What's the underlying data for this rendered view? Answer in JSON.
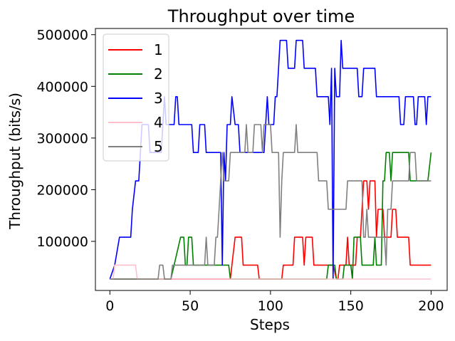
{
  "chart_data": {
    "type": "line",
    "title": "Throughput over time",
    "xlabel": "Steps",
    "ylabel": "Throughput (bits/s)",
    "xlim": [
      -9,
      210
    ],
    "ylim": [
      5000,
      512000
    ],
    "xticks": [
      0,
      50,
      100,
      150,
      200
    ],
    "yticks": [
      100000,
      200000,
      300000,
      400000,
      500000
    ],
    "grid": false,
    "legend_position": "top-left",
    "series": [
      {
        "name": "1",
        "color": "#ff0000",
        "points": [
          [
            0,
            27000
          ],
          [
            75,
            27000
          ],
          [
            76,
            54000
          ],
          [
            78,
            108000
          ],
          [
            82,
            108000
          ],
          [
            83,
            54000
          ],
          [
            92,
            54000
          ],
          [
            93,
            27000
          ],
          [
            107,
            27000
          ],
          [
            108,
            54000
          ],
          [
            114,
            54000
          ],
          [
            115,
            108000
          ],
          [
            120,
            108000
          ],
          [
            121,
            54000
          ],
          [
            122,
            108000
          ],
          [
            126,
            108000
          ],
          [
            127,
            54000
          ],
          [
            139,
            54000
          ],
          [
            141,
            27000
          ],
          [
            142,
            27000
          ],
          [
            143,
            54000
          ],
          [
            147,
            54000
          ],
          [
            148,
            108000
          ],
          [
            149,
            54000
          ],
          [
            153,
            54000
          ],
          [
            154,
            108000
          ],
          [
            156,
            108000
          ],
          [
            157,
            162000
          ],
          [
            158,
            217000
          ],
          [
            160,
            217000
          ],
          [
            161,
            162000
          ],
          [
            162,
            217000
          ],
          [
            165,
            217000
          ],
          [
            166,
            108000
          ],
          [
            167,
            162000
          ],
          [
            170,
            162000
          ],
          [
            171,
            108000
          ],
          [
            175,
            108000
          ],
          [
            176,
            162000
          ],
          [
            178,
            162000
          ],
          [
            179,
            108000
          ],
          [
            186,
            108000
          ],
          [
            187,
            54000
          ],
          [
            200,
            54000
          ]
        ]
      },
      {
        "name": "2",
        "color": "#008000",
        "points": [
          [
            0,
            27000
          ],
          [
            38,
            27000
          ],
          [
            40,
            54000
          ],
          [
            44,
            108000
          ],
          [
            46,
            108000
          ],
          [
            47,
            54000
          ],
          [
            48,
            54000
          ],
          [
            49,
            108000
          ],
          [
            51,
            108000
          ],
          [
            52,
            54000
          ],
          [
            74,
            54000
          ],
          [
            75,
            27000
          ],
          [
            80,
            27000
          ],
          [
            135,
            27000
          ],
          [
            136,
            54000
          ],
          [
            140,
            54000
          ],
          [
            141,
            27000
          ],
          [
            145,
            27000
          ],
          [
            146,
            54000
          ],
          [
            150,
            54000
          ],
          [
            151,
            27000
          ],
          [
            152,
            108000
          ],
          [
            156,
            108000
          ],
          [
            157,
            54000
          ],
          [
            164,
            54000
          ],
          [
            165,
            108000
          ],
          [
            166,
            54000
          ],
          [
            169,
            54000
          ],
          [
            170,
            217000
          ],
          [
            171,
            217000
          ],
          [
            172,
            272000
          ],
          [
            174,
            272000
          ],
          [
            175,
            217000
          ],
          [
            176,
            272000
          ],
          [
            186,
            272000
          ],
          [
            187,
            217000
          ],
          [
            198,
            217000
          ],
          [
            200,
            272000
          ]
        ]
      },
      {
        "name": "3",
        "color": "#0000ff",
        "points": [
          [
            0,
            27000
          ],
          [
            3,
            54000
          ],
          [
            6,
            108000
          ],
          [
            13,
            108000
          ],
          [
            14,
            162000
          ],
          [
            16,
            217000
          ],
          [
            18,
            217000
          ],
          [
            19,
            272000
          ],
          [
            20,
            326000
          ],
          [
            24,
            326000
          ],
          [
            25,
            272000
          ],
          [
            32,
            272000
          ],
          [
            33,
            326000
          ],
          [
            34,
            380000
          ],
          [
            35,
            326000
          ],
          [
            40,
            326000
          ],
          [
            41,
            380000
          ],
          [
            42,
            380000
          ],
          [
            43,
            326000
          ],
          [
            51,
            326000
          ],
          [
            52,
            272000
          ],
          [
            55,
            272000
          ],
          [
            56,
            326000
          ],
          [
            59,
            326000
          ],
          [
            60,
            272000
          ],
          [
            69,
            272000
          ],
          [
            70,
            54000
          ],
          [
            71,
            272000
          ],
          [
            72,
            217000
          ],
          [
            73,
            326000
          ],
          [
            75,
            326000
          ],
          [
            76,
            380000
          ],
          [
            78,
            326000
          ],
          [
            80,
            326000
          ],
          [
            81,
            272000
          ],
          [
            96,
            272000
          ],
          [
            97,
            326000
          ],
          [
            98,
            380000
          ],
          [
            99,
            326000
          ],
          [
            102,
            326000
          ],
          [
            103,
            380000
          ],
          [
            104,
            380000
          ],
          [
            105,
            435000
          ],
          [
            106,
            489000
          ],
          [
            110,
            489000
          ],
          [
            111,
            435000
          ],
          [
            115,
            435000
          ],
          [
            116,
            489000
          ],
          [
            120,
            489000
          ],
          [
            121,
            435000
          ],
          [
            128,
            435000
          ],
          [
            129,
            380000
          ],
          [
            136,
            380000
          ],
          [
            137,
            326000
          ],
          [
            138,
            435000
          ],
          [
            139,
            27000
          ],
          [
            140,
            435000
          ],
          [
            141,
            380000
          ],
          [
            143,
            380000
          ],
          [
            144,
            489000
          ],
          [
            145,
            435000
          ],
          [
            154,
            435000
          ],
          [
            155,
            380000
          ],
          [
            157,
            380000
          ],
          [
            158,
            435000
          ],
          [
            165,
            435000
          ],
          [
            166,
            380000
          ],
          [
            180,
            380000
          ],
          [
            181,
            326000
          ],
          [
            183,
            326000
          ],
          [
            184,
            380000
          ],
          [
            189,
            380000
          ],
          [
            190,
            326000
          ],
          [
            191,
            326000
          ],
          [
            192,
            380000
          ],
          [
            196,
            380000
          ],
          [
            197,
            326000
          ],
          [
            198,
            380000
          ],
          [
            200,
            380000
          ]
        ]
      },
      {
        "name": "4",
        "color": "#ffc0cb",
        "points": [
          [
            0,
            27000
          ],
          [
            2,
            27000
          ],
          [
            3,
            54000
          ],
          [
            16,
            54000
          ],
          [
            17,
            27000
          ],
          [
            200,
            27000
          ]
        ]
      },
      {
        "name": "5",
        "color": "#808080",
        "points": [
          [
            0,
            27000
          ],
          [
            30,
            27000
          ],
          [
            31,
            54000
          ],
          [
            33,
            54000
          ],
          [
            34,
            27000
          ],
          [
            38,
            27000
          ],
          [
            39,
            54000
          ],
          [
            59,
            54000
          ],
          [
            60,
            108000
          ],
          [
            61,
            54000
          ],
          [
            65,
            54000
          ],
          [
            66,
            108000
          ],
          [
            67,
            108000
          ],
          [
            68,
            162000
          ],
          [
            69,
            217000
          ],
          [
            70,
            272000
          ],
          [
            71,
            217000
          ],
          [
            74,
            217000
          ],
          [
            75,
            272000
          ],
          [
            84,
            272000
          ],
          [
            85,
            326000
          ],
          [
            86,
            272000
          ],
          [
            89,
            272000
          ],
          [
            90,
            326000
          ],
          [
            94,
            326000
          ],
          [
            95,
            272000
          ],
          [
            96,
            326000
          ],
          [
            100,
            326000
          ],
          [
            101,
            272000
          ],
          [
            105,
            272000
          ],
          [
            106,
            108000
          ],
          [
            107,
            217000
          ],
          [
            108,
            272000
          ],
          [
            115,
            272000
          ],
          [
            116,
            326000
          ],
          [
            117,
            272000
          ],
          [
            129,
            272000
          ],
          [
            130,
            217000
          ],
          [
            135,
            217000
          ],
          [
            136,
            162000
          ],
          [
            147,
            162000
          ],
          [
            148,
            217000
          ],
          [
            157,
            217000
          ],
          [
            158,
            108000
          ],
          [
            159,
            108000
          ],
          [
            160,
            162000
          ],
          [
            161,
            108000
          ],
          [
            171,
            108000
          ],
          [
            172,
            54000
          ],
          [
            173,
            162000
          ],
          [
            175,
            162000
          ],
          [
            176,
            217000
          ],
          [
            186,
            217000
          ],
          [
            187,
            272000
          ],
          [
            190,
            272000
          ],
          [
            191,
            217000
          ],
          [
            200,
            217000
          ]
        ]
      }
    ]
  }
}
